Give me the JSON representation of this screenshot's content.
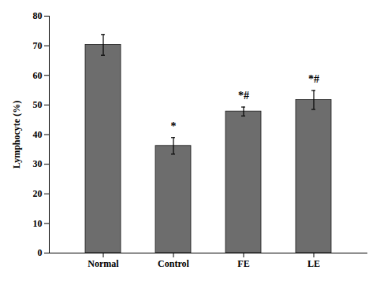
{
  "chart_data": {
    "type": "bar",
    "categories": [
      "Normal",
      "Control",
      "FE",
      "LE"
    ],
    "values": [
      70.3,
      36.2,
      47.8,
      51.7
    ],
    "errors": [
      3.5,
      2.8,
      1.5,
      3.2
    ],
    "annotations": [
      null,
      "*",
      "*#",
      "*#"
    ],
    "color": "#6d6d6d",
    "ylabel": "Lymphocyte (%)",
    "ylim": [
      0,
      80
    ],
    "yticks": [
      0,
      10,
      20,
      30,
      40,
      50,
      60,
      70,
      80
    ],
    "grid": false
  }
}
